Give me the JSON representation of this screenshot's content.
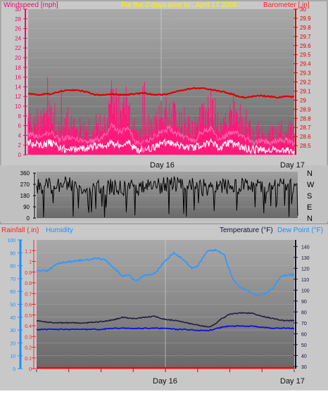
{
  "colors": {
    "background": "#c8c8c8",
    "plot_top": "#a8a8a8",
    "plot_bottom": "#6a6a6a",
    "wind_speed": "#ff1a7a",
    "wind_avg": "#ff66aa",
    "wind_gust": "#ffffff",
    "barometer": "#e00000",
    "wind_dir": "#000000",
    "humidity": "#3399ff",
    "temperature": "#202040",
    "dew_point": "#1010dd",
    "rainfall": "#ff0000",
    "title_yellow": "#ffee00",
    "windspeed_label": "#e0106e",
    "axis_red": "#ff2020",
    "axis_blue": "#1e90ff"
  },
  "header": {
    "windspeed_label": "Windspeed [mph]",
    "period_title": "For the 2 days prior to : April 17 2008",
    "barometer_label": "Barometer [.in]"
  },
  "bottom_header": {
    "rainfall_label": "Rainfall (.in)",
    "humidity_label": "Humidity",
    "temperature_label": "Temperature (°F)",
    "dew_point_label": "Dew Point (°F)"
  },
  "compass_labels": [
    "N",
    "W",
    "S",
    "E",
    "N"
  ],
  "chart_data": [
    {
      "type": "line",
      "name": "wind-barometer",
      "x_labels": [
        "Day 16",
        "Day 17"
      ],
      "left_axis": {
        "ylim": [
          0,
          30
        ],
        "ticks": [
          0,
          2,
          4,
          6,
          8,
          10,
          12,
          14,
          16,
          18,
          20,
          22,
          24,
          26,
          28,
          30
        ]
      },
      "right_axis": {
        "ylim": [
          28.4,
          30.0
        ],
        "ticks": [
          "28.5",
          "28.6",
          "28.7",
          "28.8",
          "28.9",
          "29",
          "29.1",
          "29.2",
          "29.3",
          "29.4",
          "29.5",
          "29.6",
          "29.7",
          "29.8",
          "29.9",
          "30"
        ]
      },
      "series": [
        {
          "name": "Barometer",
          "axis": "right",
          "x": [
            0,
            2,
            4,
            5.5,
            7,
            9,
            10.5,
            12,
            13.5,
            15,
            16.5,
            18,
            19.5,
            21,
            22.5,
            24,
            25.5,
            27,
            28.5,
            30,
            31.5,
            33,
            34.5,
            36,
            37.5,
            39,
            40.5,
            42,
            43.5,
            45,
            46.5,
            48
          ],
          "values": [
            29.07,
            29.06,
            29.07,
            29.09,
            29.11,
            29.11,
            29.09,
            29.06,
            29.06,
            29.07,
            29.06,
            29.06,
            29.07,
            29.08,
            29.06,
            29.06,
            29.07,
            29.1,
            29.12,
            29.13,
            29.13,
            29.12,
            29.1,
            29.08,
            29.05,
            29.03,
            29.04,
            29.05,
            29.04,
            29.03,
            29.04,
            29.04
          ]
        },
        {
          "name": "Wind speed",
          "axis": "left",
          "x": [
            0,
            2,
            4,
            5.5,
            7,
            9,
            10.5,
            12,
            13.5,
            15,
            16.5,
            18,
            19.5,
            21,
            22.5,
            24,
            25.5,
            27,
            28.5,
            30,
            31.5,
            33,
            34.5,
            36,
            37.5,
            39,
            40.5,
            42,
            43.5,
            45,
            46.5,
            48
          ],
          "values": [
            7,
            6,
            8,
            5,
            6,
            5,
            4,
            5,
            6,
            10,
            8,
            9,
            4,
            4,
            6,
            8,
            9,
            7,
            6,
            5,
            8,
            9,
            5,
            7,
            8,
            6,
            4,
            5,
            4,
            5,
            5,
            4
          ]
        },
        {
          "name": "Wind gust",
          "axis": "left",
          "x": [
            0,
            2,
            4,
            5.5,
            7,
            9,
            10.5,
            12,
            13.5,
            15,
            16.5,
            18,
            19.5,
            21,
            22.5,
            24,
            25.5,
            27,
            28.5,
            30,
            31.5,
            33,
            34.5,
            36,
            37.5,
            39,
            40.5,
            42,
            43.5,
            45,
            46.5,
            48
          ],
          "values": [
            2.5,
            2,
            2.5,
            1.5,
            1,
            1,
            1.2,
            1.8,
            2,
            2.5,
            2,
            2.5,
            1,
            1.2,
            1.5,
            2.5,
            2.5,
            2,
            1.5,
            1.5,
            2,
            2.5,
            1.5,
            2.5,
            2,
            1.5,
            1,
            1.2,
            1,
            1,
            1,
            1
          ]
        }
      ]
    },
    {
      "type": "line",
      "name": "wind-direction",
      "x_labels": [
        "Day 16",
        "Day 17"
      ],
      "left_axis": {
        "ylim": [
          0,
          360
        ],
        "ticks": [
          0,
          90,
          180,
          270,
          360
        ]
      },
      "series": [
        {
          "name": "Wind direction",
          "axis": "left",
          "x": [
            0,
            4,
            8,
            12,
            16,
            20,
            24,
            28,
            32,
            36,
            40,
            44,
            48
          ],
          "values": [
            240,
            270,
            250,
            260,
            240,
            250,
            270,
            260,
            240,
            250,
            270,
            250,
            240
          ]
        }
      ]
    },
    {
      "type": "line",
      "name": "rain-humidity-temperature",
      "x_labels": [
        "Day 16",
        "Day 17"
      ],
      "left_axis": {
        "ylim": [
          0,
          100
        ],
        "ticks": [
          0,
          10,
          20,
          30,
          40,
          50,
          60,
          70,
          80,
          90,
          100
        ]
      },
      "rain_axis": {
        "ylim": [
          0,
          1.2
        ],
        "ticks": [
          "0",
          "0.1",
          "0.2",
          "0.3",
          "0.4",
          "0.5",
          "0.6",
          "0.7",
          "0.8",
          "0.9",
          "1",
          "1.1"
        ]
      },
      "right_axis": {
        "ylim": [
          28,
          146
        ],
        "ticks": [
          30,
          40,
          50,
          60,
          70,
          80,
          90,
          100,
          110,
          120,
          130,
          140
        ]
      },
      "series": [
        {
          "name": "Humidity",
          "axis": "left",
          "x": [
            0,
            2,
            4,
            6,
            8,
            10,
            11.5,
            13,
            14,
            15,
            16,
            17,
            18.5,
            20,
            22,
            24,
            25.5,
            27,
            28,
            29,
            30,
            31,
            32,
            33.5,
            35,
            36.5,
            38,
            39.5,
            41,
            42.5,
            44,
            45.5,
            47,
            48
          ],
          "values": [
            76,
            76,
            82,
            83,
            84,
            85,
            86,
            84,
            80,
            76,
            72,
            73,
            68,
            72,
            74,
            84,
            90,
            86,
            82,
            78,
            80,
            86,
            92,
            92,
            88,
            70,
            63,
            60,
            57,
            58,
            62,
            72,
            73,
            73
          ]
        },
        {
          "name": "Temperature",
          "axis": "right",
          "x": [
            0,
            3,
            6,
            9,
            12,
            14.5,
            16,
            18,
            20,
            22,
            24,
            26,
            28,
            30,
            32,
            33,
            34.5,
            36,
            38,
            40,
            42,
            44,
            46,
            48
          ],
          "values": [
            72,
            70,
            70,
            70,
            71,
            73,
            75,
            74,
            75,
            76,
            73,
            72,
            70,
            68,
            66,
            68,
            74,
            78,
            79,
            79,
            76,
            74,
            72,
            72
          ]
        },
        {
          "name": "Dew Point",
          "axis": "right",
          "x": [
            0,
            3,
            6,
            9,
            12,
            14.5,
            16,
            18,
            20,
            22,
            24,
            26,
            28,
            30,
            32,
            33,
            34.5,
            36,
            38,
            40,
            42,
            44,
            46,
            48
          ],
          "values": [
            64,
            64,
            64,
            64,
            64,
            65,
            65,
            65,
            65,
            65,
            65,
            64,
            64,
            63,
            63,
            64,
            66,
            67,
            67,
            67,
            66,
            65,
            65,
            65
          ]
        },
        {
          "name": "Rainfall",
          "axis": "rain",
          "x": [
            0,
            48
          ],
          "values": [
            0,
            0
          ]
        }
      ]
    }
  ]
}
